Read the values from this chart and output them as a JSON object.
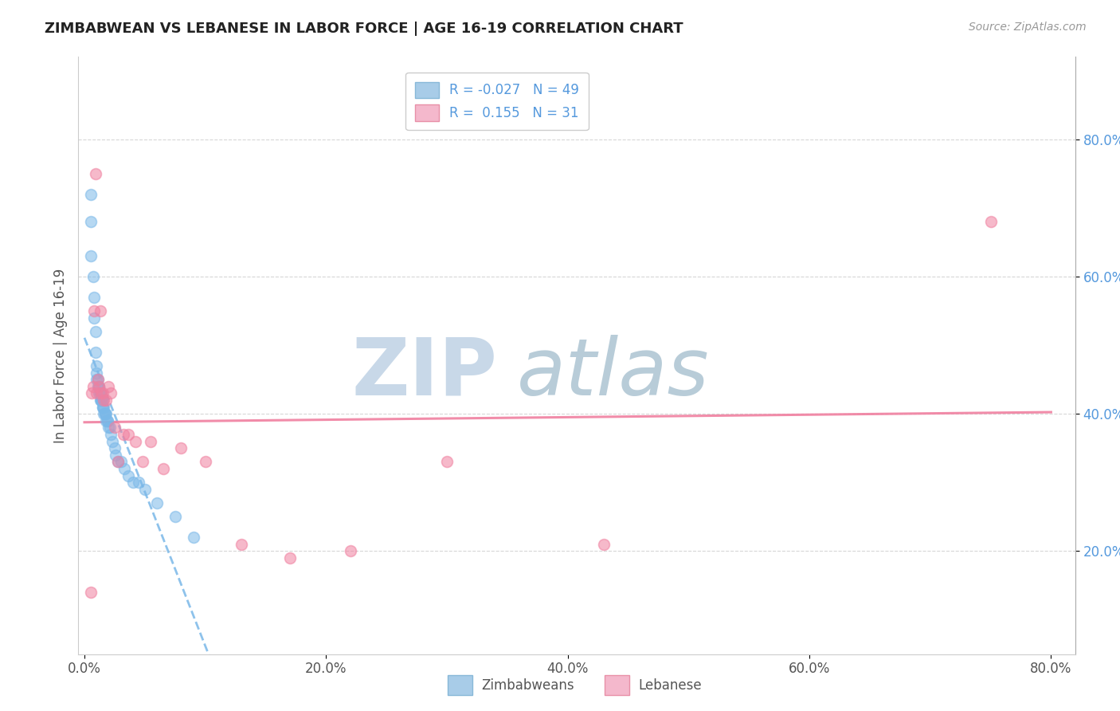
{
  "title": "ZIMBABWEAN VS LEBANESE IN LABOR FORCE | AGE 16-19 CORRELATION CHART",
  "source_text": "Source: ZipAtlas.com",
  "ylabel": "In Labor Force | Age 16-19",
  "xlim": [
    -0.005,
    0.82
  ],
  "ylim": [
    0.05,
    0.92
  ],
  "xtick_labels": [
    "0.0%",
    "20.0%",
    "40.0%",
    "60.0%",
    "80.0%"
  ],
  "xtick_vals": [
    0.0,
    0.2,
    0.4,
    0.6,
    0.8
  ],
  "ytick_labels": [
    "20.0%",
    "40.0%",
    "60.0%",
    "80.0%"
  ],
  "ytick_vals": [
    0.2,
    0.4,
    0.6,
    0.8
  ],
  "zimbabwean_color": "#7ab8e8",
  "lebanese_color": "#f080a0",
  "legend_zim_face": "#a8cce8",
  "legend_leb_face": "#f4b8cc",
  "watermark_zip_color": "#c8d8e8",
  "watermark_atlas_color": "#b8ccd8",
  "zimbabwean_x": [
    0.005,
    0.005,
    0.005,
    0.007,
    0.008,
    0.008,
    0.009,
    0.009,
    0.01,
    0.01,
    0.01,
    0.011,
    0.011,
    0.012,
    0.012,
    0.012,
    0.013,
    0.013,
    0.013,
    0.014,
    0.014,
    0.014,
    0.015,
    0.015,
    0.015,
    0.016,
    0.016,
    0.017,
    0.017,
    0.018,
    0.018,
    0.019,
    0.019,
    0.02,
    0.021,
    0.022,
    0.023,
    0.025,
    0.026,
    0.028,
    0.03,
    0.033,
    0.036,
    0.04,
    0.045,
    0.05,
    0.06,
    0.075,
    0.09
  ],
  "zimbabwean_y": [
    0.72,
    0.68,
    0.63,
    0.6,
    0.57,
    0.54,
    0.52,
    0.49,
    0.47,
    0.46,
    0.45,
    0.45,
    0.44,
    0.44,
    0.44,
    0.43,
    0.43,
    0.43,
    0.42,
    0.42,
    0.42,
    0.42,
    0.42,
    0.41,
    0.41,
    0.41,
    0.4,
    0.4,
    0.4,
    0.4,
    0.39,
    0.39,
    0.39,
    0.38,
    0.38,
    0.37,
    0.36,
    0.35,
    0.34,
    0.33,
    0.33,
    0.32,
    0.31,
    0.3,
    0.3,
    0.29,
    0.27,
    0.25,
    0.22
  ],
  "lebanese_x": [
    0.005,
    0.006,
    0.007,
    0.008,
    0.009,
    0.01,
    0.011,
    0.012,
    0.013,
    0.014,
    0.015,
    0.016,
    0.018,
    0.02,
    0.022,
    0.025,
    0.028,
    0.032,
    0.036,
    0.042,
    0.048,
    0.055,
    0.065,
    0.08,
    0.1,
    0.13,
    0.17,
    0.22,
    0.3,
    0.43,
    0.75
  ],
  "lebanese_y": [
    0.14,
    0.43,
    0.44,
    0.55,
    0.75,
    0.43,
    0.45,
    0.44,
    0.55,
    0.43,
    0.43,
    0.42,
    0.42,
    0.44,
    0.43,
    0.38,
    0.33,
    0.37,
    0.37,
    0.36,
    0.33,
    0.36,
    0.32,
    0.35,
    0.33,
    0.21,
    0.19,
    0.2,
    0.33,
    0.21,
    0.68
  ]
}
